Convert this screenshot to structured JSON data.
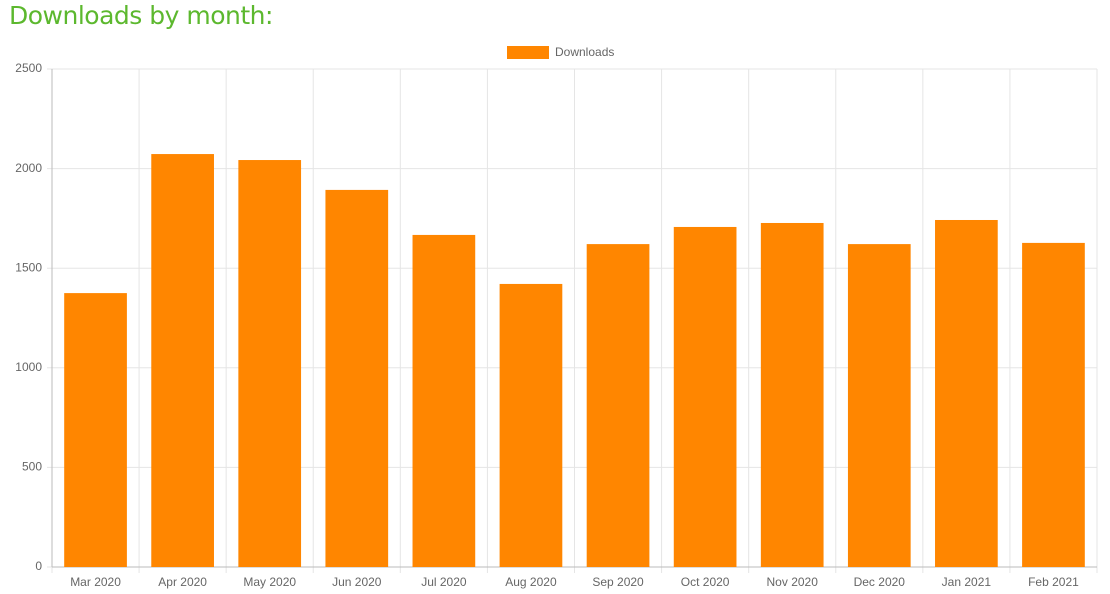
{
  "heading": "Downloads by month:",
  "chart_data": {
    "type": "bar",
    "categories": [
      "Mar 2020",
      "Apr 2020",
      "May 2020",
      "Jun 2020",
      "Jul 2020",
      "Aug 2020",
      "Sep 2020",
      "Oct 2020",
      "Nov 2020",
      "Dec 2020",
      "Jan 2021",
      "Feb 2021"
    ],
    "series": [
      {
        "name": "Downloads",
        "color": "#ff8600",
        "values": [
          1375,
          2073,
          2043,
          1893,
          1667,
          1421,
          1621,
          1707,
          1727,
          1621,
          1742,
          1627
        ]
      }
    ],
    "ylim": [
      0,
      2500
    ],
    "yticks": [
      0,
      500,
      1000,
      1500,
      2000,
      2500
    ],
    "grid": true,
    "legend": "top"
  }
}
